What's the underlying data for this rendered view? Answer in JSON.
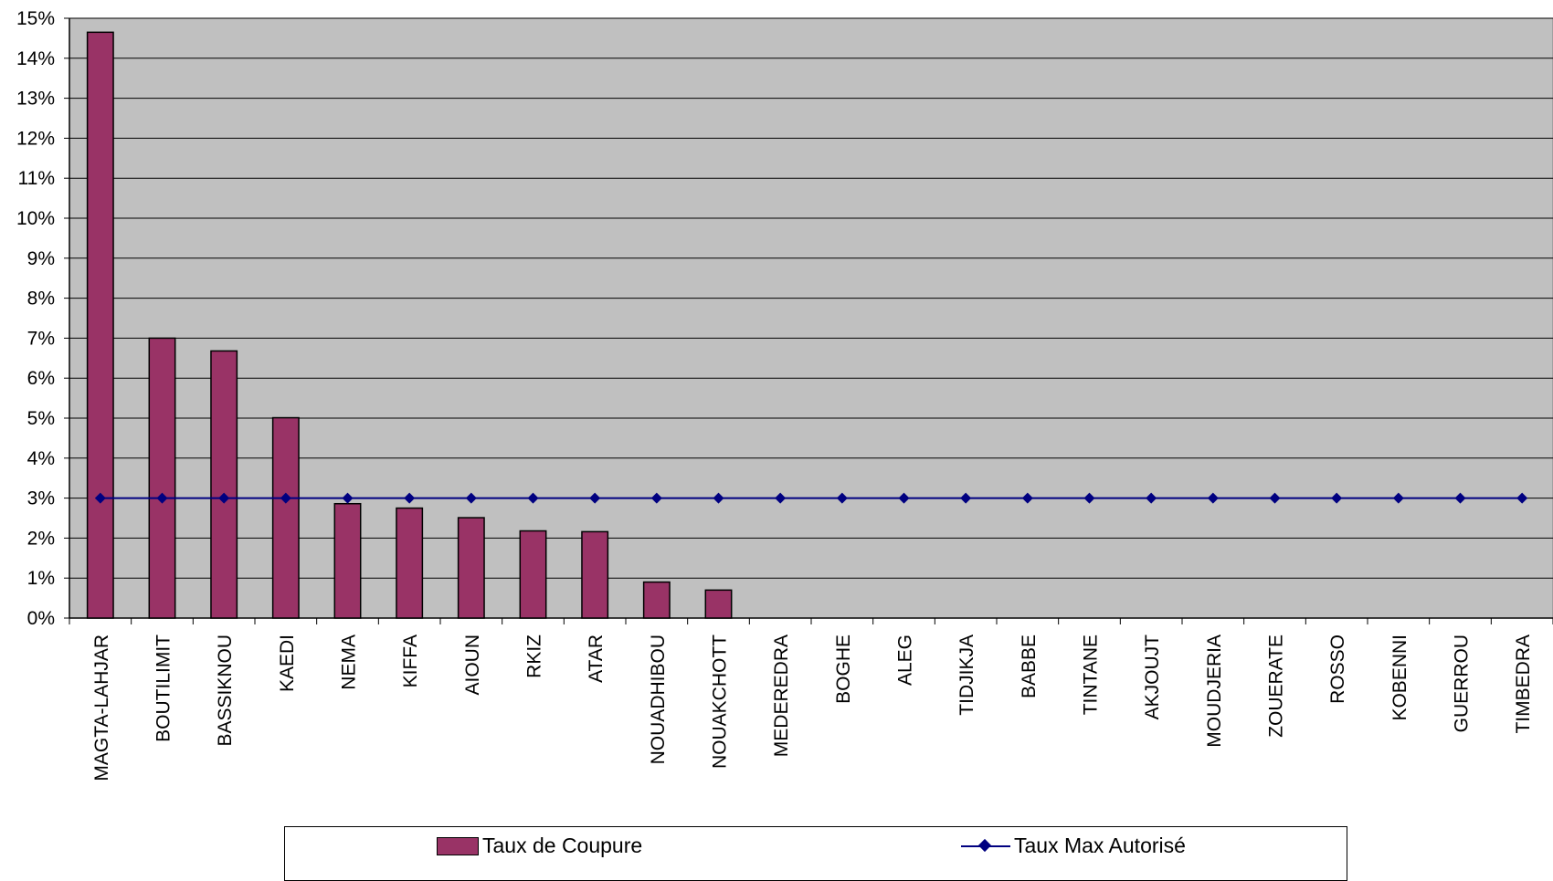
{
  "chart_data": {
    "type": "bar",
    "categories": [
      "MAGTA-LAHJAR",
      "BOUTILIMIT",
      "BASSIKNOU",
      "KAEDI",
      "NEMA",
      "KIFFA",
      "AIOUN",
      "RKIZ",
      "ATAR",
      "NOUADHIBOU",
      "NOUAKCHOTT",
      "MEDEREDRA",
      "BOGHE",
      "ALEG",
      "TIDJIKJA",
      "BABBE",
      "TINTANE",
      "AKJOUJT",
      "MOUDJERIA",
      "ZOUERATE",
      "ROSSO",
      "KOBENNI",
      "GUERROU",
      "TIMBEDRA"
    ],
    "series": [
      {
        "name": "Taux de Coupure",
        "kind": "bar",
        "color": "#993366",
        "values": [
          0.1465,
          0.07,
          0.0668,
          0.0501,
          0.0286,
          0.0275,
          0.0251,
          0.0218,
          0.0216,
          0.009,
          0.007,
          0,
          0,
          0,
          0,
          0,
          0,
          0,
          0,
          0,
          0,
          0,
          0,
          0
        ]
      },
      {
        "name": "Taux Max Autorisé",
        "kind": "line",
        "color": "#000080",
        "values": [
          0.03,
          0.03,
          0.03,
          0.03,
          0.03,
          0.03,
          0.03,
          0.03,
          0.03,
          0.03,
          0.03,
          0.03,
          0.03,
          0.03,
          0.03,
          0.03,
          0.03,
          0.03,
          0.03,
          0.03,
          0.03,
          0.03,
          0.03,
          0.03
        ]
      }
    ],
    "y_ticks": [
      "0%",
      "1%",
      "2%",
      "3%",
      "4%",
      "5%",
      "6%",
      "7%",
      "8%",
      "9%",
      "10%",
      "11%",
      "12%",
      "13%",
      "14%",
      "15%"
    ],
    "ylim": [
      0,
      0.15
    ],
    "title": "",
    "xlabel": "",
    "ylabel": "",
    "grid": true,
    "legend_position": "bottom",
    "plot_background": "#c0c0c0"
  }
}
